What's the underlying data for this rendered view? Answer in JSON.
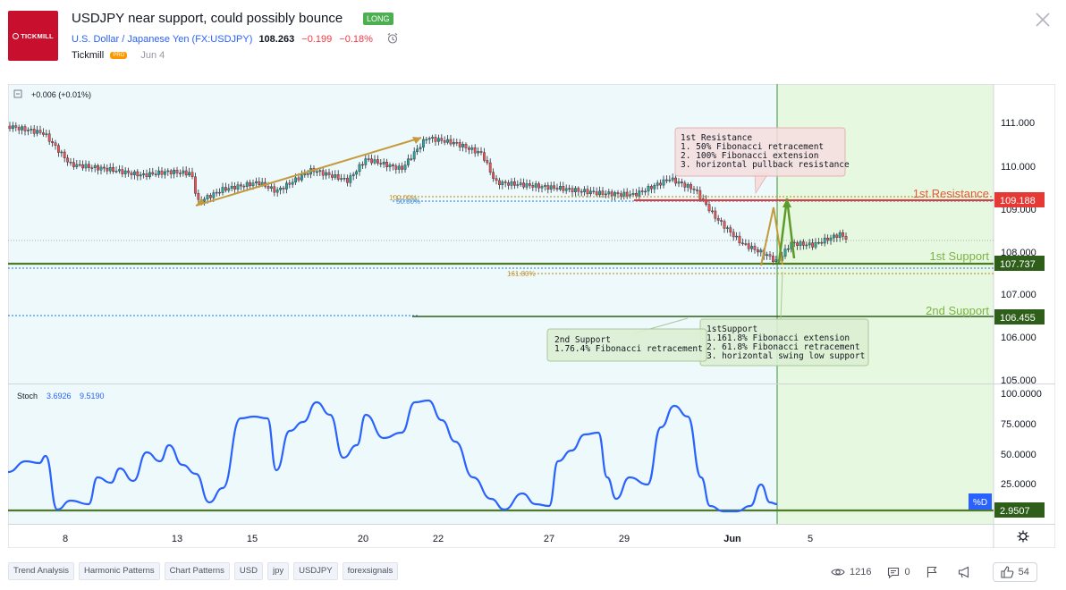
{
  "header": {
    "logo_text": "TICKMILL",
    "title": "USDJPY near support, could possibly bounce",
    "badge": "LONG",
    "symbol": "U.S. Dollar / Japanese Yen (FX:USDJPY)",
    "price": "108.263",
    "change": "−0.199",
    "change_pct": "−0.18%",
    "author": "Tickmill",
    "author_badge": "PRO",
    "date": "Jun 4"
  },
  "chart": {
    "legend_main": "+0.006 (+0.01%)",
    "price_ticks": [
      "111.000",
      "110.000",
      "109.000",
      "108.000",
      "107.000",
      "106.000",
      "105.000"
    ],
    "x_ticks": [
      "8",
      "13",
      "15",
      "20",
      "22",
      "27",
      "29",
      "Jun",
      "5"
    ],
    "levels": {
      "resistance_label": "1st Resistance",
      "resistance_value": "109.188",
      "support1_label": "1st Support",
      "support1_value": "107.737",
      "support2_label": "2nd Support",
      "support2_value": "106.455"
    },
    "fib_labels": {
      "f100": "100.00%",
      "f50": "50.00%",
      "f161": "161.80%"
    },
    "notes": {
      "resistance": [
        "1st Resistance",
        "1. 50% Fibonacci retracement",
        "2. 100% Fibonacci extension",
        "3. horizontal pullback resistance"
      ],
      "support1": [
        "1stSupport",
        "1.161.8% Fibonacci extension",
        "2. 61.8% Fibonacci retracement",
        "3. horizontal swing low support"
      ],
      "support2": [
        "2nd Support",
        "1.76.4% Fibonacci retracement"
      ]
    },
    "stoch": {
      "label": "Stoch",
      "k": "3.6926",
      "d": "9.5190",
      "ticks": [
        "100.0000",
        "75.0000",
        "50.0000",
        "25.0000"
      ],
      "badge": "%D",
      "level_value": "2.9507"
    },
    "colors": {
      "resistance": "#e53935",
      "support": "#4f7a28",
      "stoch": "#2962ff",
      "bull": "#26a69a",
      "bear": "#ef5350"
    }
  },
  "tags": [
    "Trend Analysis",
    "Harmonic Patterns",
    "Chart Patterns",
    "USD",
    "jpy",
    "USDJPY",
    "forexsignals"
  ],
  "stats": {
    "views": "1216",
    "comments": "0",
    "likes": "54"
  }
}
